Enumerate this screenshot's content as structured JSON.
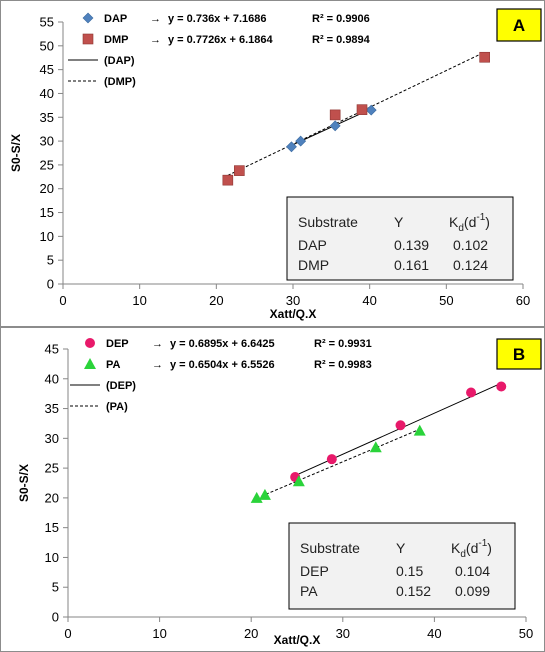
{
  "chart_data": [
    {
      "type": "scatter",
      "panel_label": "A",
      "xlabel": "Xatt/Q.X",
      "ylabel": "S0-S/X",
      "xlim": [
        0,
        60
      ],
      "ylim": [
        0,
        55
      ],
      "xticks": [
        0,
        10,
        20,
        30,
        40,
        50,
        60
      ],
      "yticks": [
        0,
        5,
        10,
        15,
        20,
        25,
        30,
        35,
        40,
        45,
        50,
        55
      ],
      "grid": false,
      "legend_position": "top-left",
      "series": [
        {
          "name": "DAP",
          "marker": "diamond",
          "color": "#4f81bd",
          "equation": "y = 0.736x + 7.1686",
          "r2": "R² = 0.9906",
          "fit_label": "(DAP)",
          "fit_style": "solid",
          "slope": 0.736,
          "intercept": 7.1686,
          "points": [
            [
              29.8,
              28.8
            ],
            [
              31,
              30
            ],
            [
              35.5,
              33.2
            ],
            [
              40.2,
              36.5
            ]
          ]
        },
        {
          "name": "DMP",
          "marker": "square",
          "color": "#c0504d",
          "equation": "y = 0.7726x + 6.1864",
          "r2": "R² = 0.9894",
          "fit_label": "(DMP)",
          "fit_style": "dashed",
          "slope": 0.7726,
          "intercept": 6.1864,
          "points": [
            [
              21.5,
              21.8
            ],
            [
              23,
              23.8
            ],
            [
              35.5,
              35.5
            ],
            [
              39,
              36.6
            ],
            [
              55,
              47.6
            ]
          ]
        }
      ],
      "table": {
        "headers": [
          "Substrate",
          "Y",
          "Kd(d-1)"
        ],
        "kd_base": "K",
        "kd_sub": "d",
        "kd_tail": "(d",
        "kd_sup": "-1",
        "kd_close": ")",
        "rows": [
          [
            "DAP",
            "0.139",
            "0.102"
          ],
          [
            "DMP",
            "0.161",
            "0.124"
          ]
        ]
      }
    },
    {
      "type": "scatter",
      "panel_label": "B",
      "xlabel": "Xatt/Q.X",
      "ylabel": "S0-S/X",
      "xlim": [
        0,
        50
      ],
      "ylim": [
        0,
        45
      ],
      "xticks": [
        0,
        10,
        20,
        30,
        40,
        50
      ],
      "yticks": [
        0,
        5,
        10,
        15,
        20,
        25,
        30,
        35,
        40,
        45
      ],
      "grid": false,
      "legend_position": "top-left",
      "series": [
        {
          "name": "DEP",
          "marker": "circle",
          "color": "#e8196a",
          "equation": "y = 0.6895x + 6.6425",
          "r2": "R² = 0.9931",
          "fit_label": "(DEP)",
          "fit_style": "solid",
          "slope": 0.6895,
          "intercept": 6.6425,
          "points": [
            [
              24.8,
              23.5
            ],
            [
              28.8,
              26.5
            ],
            [
              36.3,
              32.2
            ],
            [
              44,
              37.7
            ],
            [
              47.3,
              38.7
            ]
          ]
        },
        {
          "name": "PA",
          "marker": "triangle",
          "color": "#2ad33a",
          "equation": "y = 0.6504x + 6.5526",
          "r2": "R² = 0.9983",
          "fit_label": "(PA)",
          "fit_style": "dashed",
          "slope": 0.6504,
          "intercept": 6.5526,
          "points": [
            [
              20.6,
              20
            ],
            [
              21.5,
              20.5
            ],
            [
              25.2,
              22.8
            ],
            [
              33.6,
              28.5
            ],
            [
              38.4,
              31.3
            ]
          ]
        }
      ],
      "table": {
        "headers": [
          "Substrate",
          "Y",
          "Kd(d-1)"
        ],
        "kd_base": "K",
        "kd_sub": "d",
        "kd_tail": "(d",
        "kd_sup": "-1",
        "kd_close": ")",
        "rows": [
          [
            "DEP",
            "0.15",
            "0.104"
          ],
          [
            "PA",
            "0.152",
            "0.099"
          ]
        ]
      }
    }
  ]
}
